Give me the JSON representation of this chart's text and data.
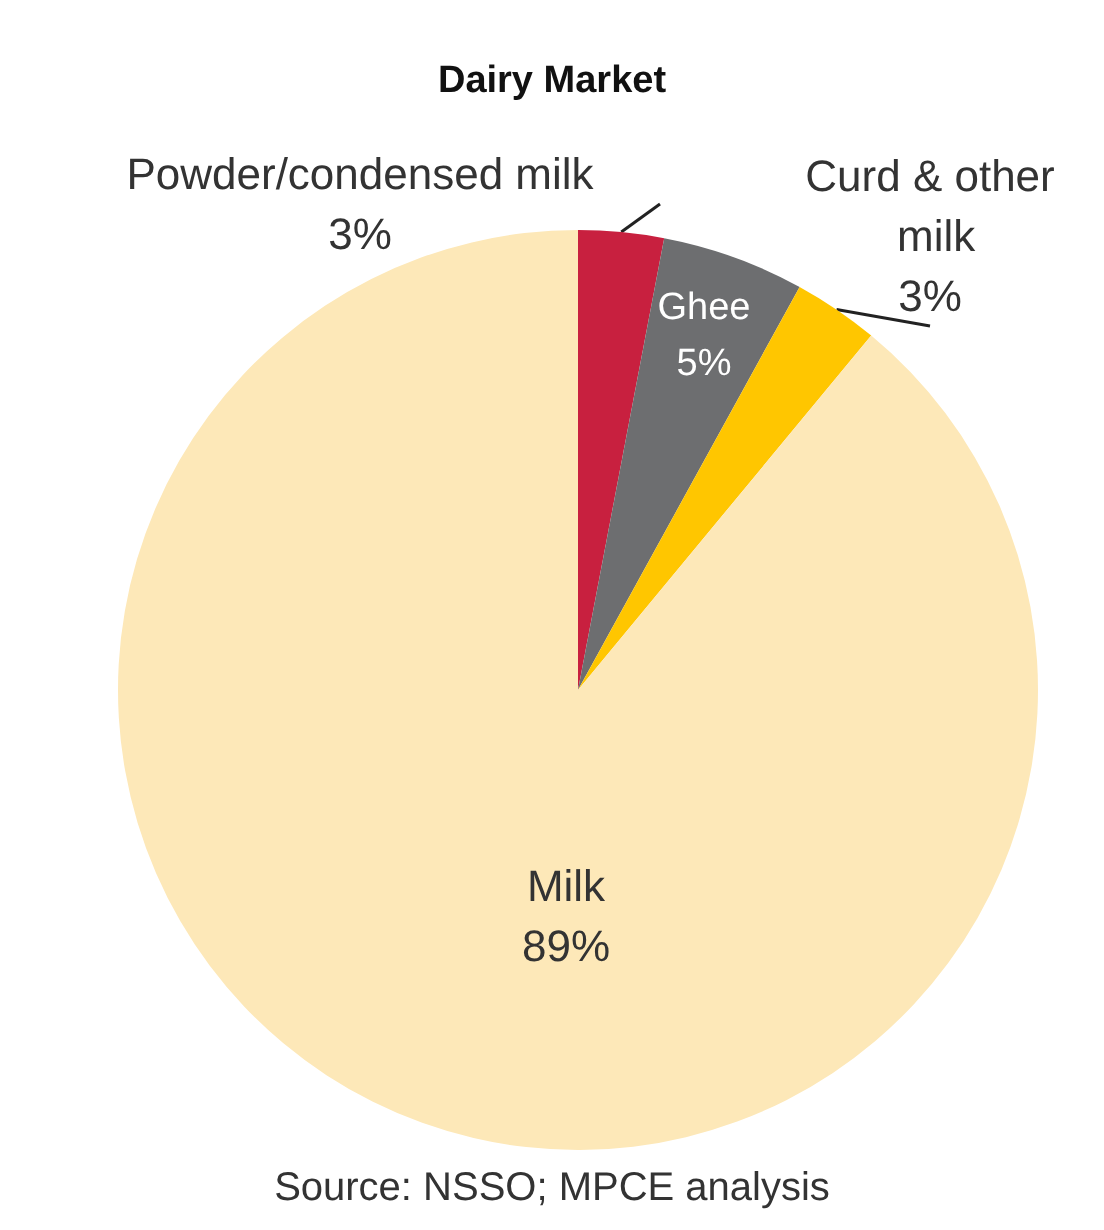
{
  "chart_data": {
    "type": "pie",
    "title": "Dairy Market",
    "categories": [
      "Powder/condensed milk",
      "Ghee",
      "Curd & other milk",
      "Milk"
    ],
    "values": [
      3,
      5,
      3,
      89
    ],
    "value_labels": [
      "3%",
      "5%",
      "3%",
      "89%"
    ],
    "colors": [
      "#c8203f",
      "#6d6e70",
      "#ffc600",
      "#fde8b8"
    ],
    "legend": false,
    "annotations": [
      "Source: NSSO; MPCE analysis"
    ]
  }
}
